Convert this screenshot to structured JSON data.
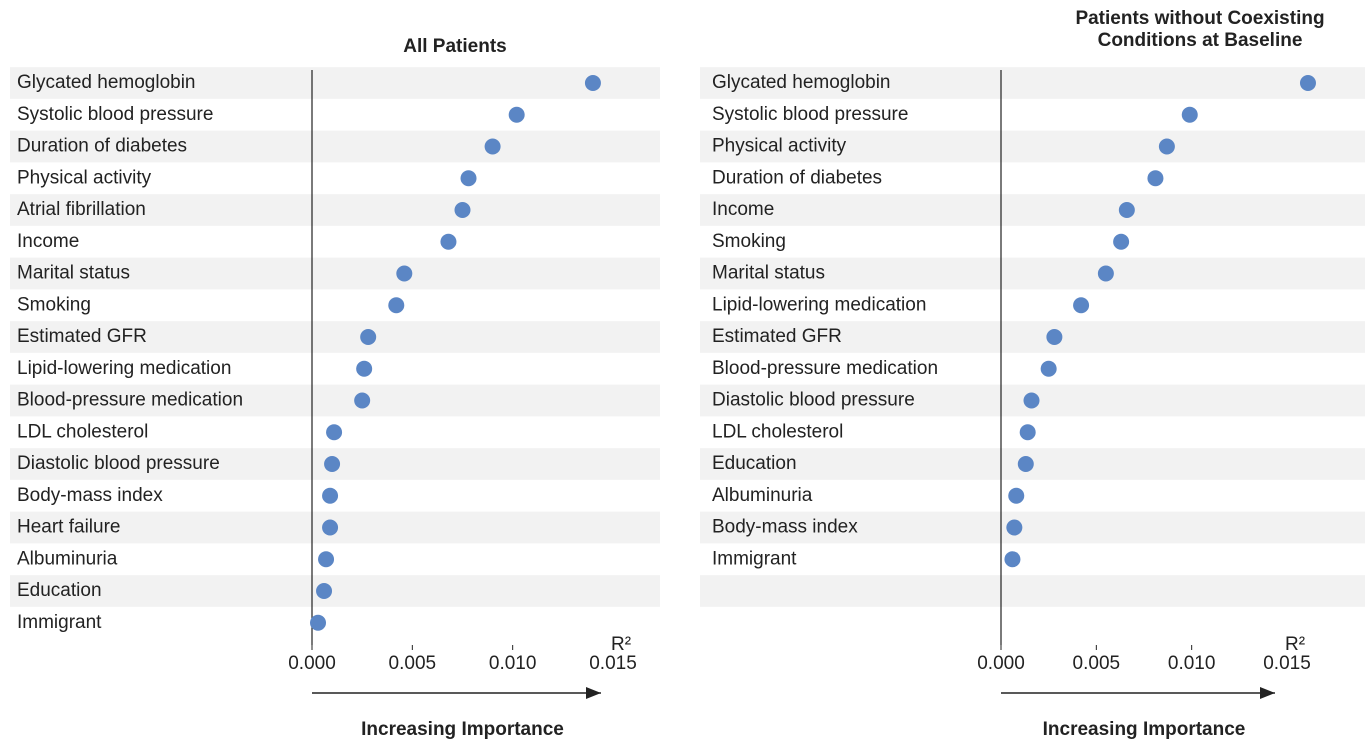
{
  "chart_data": [
    {
      "type": "dot",
      "title": "All Patients",
      "xlabel": "R²",
      "arrow_label": "Increasing Importance",
      "categories": [
        "Glycated hemoglobin",
        "Systolic blood pressure",
        "Duration of diabetes",
        "Physical activity",
        "Atrial fibrillation",
        "Income",
        "Marital status",
        "Smoking",
        "Estimated GFR",
        "Lipid-lowering medication",
        "Blood-pressure medication",
        "LDL cholesterol",
        "Diastolic blood pressure",
        "Body-mass index",
        "Heart failure",
        "Albuminuria",
        "Education",
        "Immigrant"
      ],
      "values": [
        0.014,
        0.0102,
        0.009,
        0.0078,
        0.0075,
        0.0068,
        0.0046,
        0.0042,
        0.0028,
        0.0026,
        0.0025,
        0.0011,
        0.001,
        0.0009,
        0.0009,
        0.0007,
        0.0006,
        0.0003
      ],
      "color": "#5b86c5",
      "xlim": [
        0,
        0.015
      ],
      "xticks": [
        {
          "value": 0,
          "label": "0.000"
        },
        0.005,
        {
          "value": 0.01,
          "label": "0.010"
        },
        0.015
      ]
    },
    {
      "type": "dot",
      "title": "Patients without Coexisting Conditions at Baseline",
      "xlabel": "R²",
      "arrow_label": "Increasing Importance",
      "categories": [
        "Glycated hemoglobin",
        "Systolic blood pressure",
        "Physical activity",
        "Duration of diabetes",
        "Income",
        "Smoking",
        "Marital status",
        "Lipid-lowering medication",
        "Estimated GFR",
        "Blood-pressure medication",
        "Diastolic blood pressure",
        "LDL cholesterol",
        "Education",
        "Albuminuria",
        "Body-mass index",
        "Immigrant"
      ],
      "values": [
        0.0161,
        0.0099,
        0.0087,
        0.0081,
        0.0066,
        0.0063,
        0.0055,
        0.0042,
        0.0028,
        0.0025,
        0.0016,
        0.0014,
        0.0013,
        0.0008,
        0.0007,
        0.0006
      ],
      "color": "#5b86c5",
      "xlim": [
        0,
        0.015
      ],
      "xticks": [
        {
          "value": 0,
          "label": "0.000"
        },
        0.005,
        {
          "value": 0.01,
          "label": "0.010"
        },
        0.015
      ]
    }
  ]
}
